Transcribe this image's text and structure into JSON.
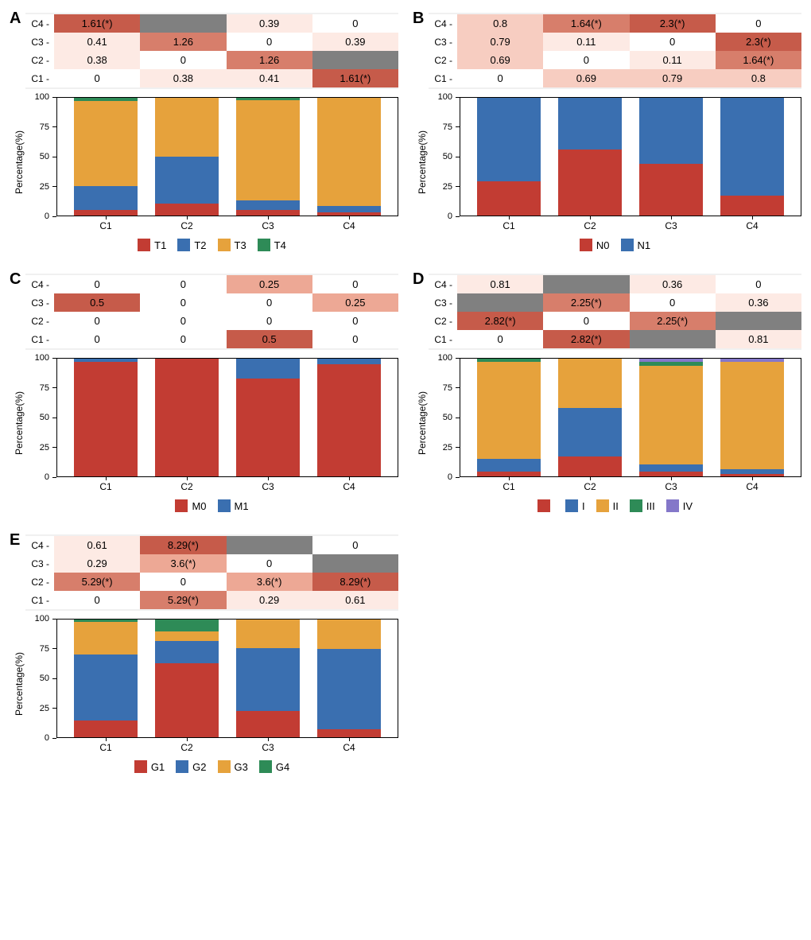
{
  "layout": {
    "cols": 2
  },
  "yaxis_label": "Percentage(%)",
  "yticks": [
    0,
    25,
    50,
    75,
    100
  ],
  "xcats": [
    "C1",
    "C2",
    "C3",
    "C4"
  ],
  "hm_rows": [
    "C4",
    "C3",
    "C2",
    "C1"
  ],
  "colors": {
    "red": "#c23c33",
    "blue": "#3a6fb0",
    "orange": "#e6a23c",
    "green": "#2e8b57",
    "purple": "#8477c9",
    "grey": "#808080",
    "hm0": "#ffffff",
    "hm1": "#fdeae4",
    "hm2": "#f7cdc1",
    "hm3": "#eda895",
    "hm4": "#d77e6b",
    "hm5": "#c65b4a",
    "panel_bg": "#f0f0f0"
  },
  "panels": [
    {
      "id": "A",
      "label": "A",
      "heat": [
        [
          {
            "v": "1.61(*)",
            "c": "hm5"
          },
          {
            "v": "",
            "c": "grey"
          },
          {
            "v": "0.39",
            "c": "hm1"
          },
          {
            "v": "0",
            "c": "hm0"
          }
        ],
        [
          {
            "v": "0.41",
            "c": "hm1"
          },
          {
            "v": "1.26",
            "c": "hm4"
          },
          {
            "v": "0",
            "c": "hm0"
          },
          {
            "v": "0.39",
            "c": "hm1"
          }
        ],
        [
          {
            "v": "0.38",
            "c": "hm1"
          },
          {
            "v": "0",
            "c": "hm0"
          },
          {
            "v": "1.26",
            "c": "hm4"
          },
          {
            "v": "",
            "c": "grey"
          }
        ],
        [
          {
            "v": "0",
            "c": "hm0"
          },
          {
            "v": "0.38",
            "c": "hm1"
          },
          {
            "v": "0.41",
            "c": "hm1"
          },
          {
            "v": "1.61(*)",
            "c": "hm5"
          }
        ]
      ],
      "series": [
        {
          "key": "T1",
          "color": "red"
        },
        {
          "key": "T2",
          "color": "blue"
        },
        {
          "key": "T3",
          "color": "orange"
        },
        {
          "key": "T4",
          "color": "green"
        }
      ],
      "stacks": [
        {
          "T4": 3,
          "T3": 72,
          "T2": 20,
          "T1": 5
        },
        {
          "T4": 0,
          "T3": 50,
          "T2": 40,
          "T1": 10
        },
        {
          "T4": 2,
          "T3": 85,
          "T2": 8,
          "T1": 5
        },
        {
          "T4": 0,
          "T3": 92,
          "T2": 5,
          "T1": 3
        }
      ]
    },
    {
      "id": "B",
      "label": "B",
      "heat": [
        [
          {
            "v": "0.8",
            "c": "hm2"
          },
          {
            "v": "1.64(*)",
            "c": "hm4"
          },
          {
            "v": "2.3(*)",
            "c": "hm5"
          },
          {
            "v": "0",
            "c": "hm0"
          }
        ],
        [
          {
            "v": "0.79",
            "c": "hm2"
          },
          {
            "v": "0.11",
            "c": "hm1"
          },
          {
            "v": "0",
            "c": "hm0"
          },
          {
            "v": "2.3(*)",
            "c": "hm5"
          }
        ],
        [
          {
            "v": "0.69",
            "c": "hm2"
          },
          {
            "v": "0",
            "c": "hm0"
          },
          {
            "v": "0.11",
            "c": "hm1"
          },
          {
            "v": "1.64(*)",
            "c": "hm4"
          }
        ],
        [
          {
            "v": "0",
            "c": "hm0"
          },
          {
            "v": "0.69",
            "c": "hm2"
          },
          {
            "v": "0.79",
            "c": "hm2"
          },
          {
            "v": "0.8",
            "c": "hm2"
          }
        ]
      ],
      "series": [
        {
          "key": "N0",
          "color": "red"
        },
        {
          "key": "N1",
          "color": "blue"
        }
      ],
      "stacks": [
        {
          "N1": 71,
          "N0": 29
        },
        {
          "N1": 44,
          "N0": 56
        },
        {
          "N1": 56,
          "N0": 44
        },
        {
          "N1": 83,
          "N0": 17
        }
      ]
    },
    {
      "id": "C",
      "label": "C",
      "heat": [
        [
          {
            "v": "0",
            "c": "hm0"
          },
          {
            "v": "0",
            "c": "hm0"
          },
          {
            "v": "0.25",
            "c": "hm3"
          },
          {
            "v": "0",
            "c": "hm0"
          }
        ],
        [
          {
            "v": "0.5",
            "c": "hm5"
          },
          {
            "v": "0",
            "c": "hm0"
          },
          {
            "v": "0",
            "c": "hm0"
          },
          {
            "v": "0.25",
            "c": "hm3"
          }
        ],
        [
          {
            "v": "0",
            "c": "hm0"
          },
          {
            "v": "0",
            "c": "hm0"
          },
          {
            "v": "0",
            "c": "hm0"
          },
          {
            "v": "0",
            "c": "hm0"
          }
        ],
        [
          {
            "v": "0",
            "c": "hm0"
          },
          {
            "v": "0",
            "c": "hm0"
          },
          {
            "v": "0.5",
            "c": "hm5"
          },
          {
            "v": "0",
            "c": "hm0"
          }
        ]
      ],
      "series": [
        {
          "key": "M0",
          "color": "red"
        },
        {
          "key": "M1",
          "color": "blue"
        }
      ],
      "stacks": [
        {
          "M1": 3,
          "M0": 97
        },
        {
          "M1": 0,
          "M0": 100
        },
        {
          "M1": 17,
          "M0": 83
        },
        {
          "M1": 5,
          "M0": 95
        }
      ]
    },
    {
      "id": "D",
      "label": "D",
      "heat": [
        [
          {
            "v": "0.81",
            "c": "hm1"
          },
          {
            "v": "",
            "c": "grey"
          },
          {
            "v": "0.36",
            "c": "hm1"
          },
          {
            "v": "0",
            "c": "hm0"
          }
        ],
        [
          {
            "v": "",
            "c": "grey"
          },
          {
            "v": "2.25(*)",
            "c": "hm4"
          },
          {
            "v": "0",
            "c": "hm0"
          },
          {
            "v": "0.36",
            "c": "hm1"
          }
        ],
        [
          {
            "v": "2.82(*)",
            "c": "hm5"
          },
          {
            "v": "0",
            "c": "hm0"
          },
          {
            "v": "2.25(*)",
            "c": "hm4"
          },
          {
            "v": "",
            "c": "grey"
          }
        ],
        [
          {
            "v": "0",
            "c": "hm0"
          },
          {
            "v": "2.82(*)",
            "c": "hm5"
          },
          {
            "v": "",
            "c": "grey"
          },
          {
            "v": "0.81",
            "c": "hm1"
          }
        ]
      ],
      "series": [
        {
          "key": "",
          "color": "red"
        },
        {
          "key": "I",
          "color": "blue"
        },
        {
          "key": "II",
          "color": "orange"
        },
        {
          "key": "III",
          "color": "green"
        },
        {
          "key": "IV",
          "color": "purple"
        }
      ],
      "stacks": [
        {
          "IV": 0,
          "III": 3,
          "II": 82,
          "I": 11,
          "": 4
        },
        {
          "IV": 0,
          "III": 0,
          "II": 42,
          "I": 41,
          "": 17
        },
        {
          "IV": 3,
          "III": 3,
          "II": 84,
          "I": 6,
          "": 4
        },
        {
          "IV": 3,
          "III": 0,
          "II": 91,
          "I": 4,
          "": 2
        }
      ]
    },
    {
      "id": "E",
      "label": "E",
      "heat": [
        [
          {
            "v": "0.61",
            "c": "hm1"
          },
          {
            "v": "8.29(*)",
            "c": "hm5"
          },
          {
            "v": "",
            "c": "grey"
          },
          {
            "v": "0",
            "c": "hm0"
          }
        ],
        [
          {
            "v": "0.29",
            "c": "hm1"
          },
          {
            "v": "3.6(*)",
            "c": "hm3"
          },
          {
            "v": "0",
            "c": "hm0"
          },
          {
            "v": "",
            "c": "grey"
          }
        ],
        [
          {
            "v": "5.29(*)",
            "c": "hm4"
          },
          {
            "v": "0",
            "c": "hm0"
          },
          {
            "v": "3.6(*)",
            "c": "hm3"
          },
          {
            "v": "8.29(*)",
            "c": "hm5"
          }
        ],
        [
          {
            "v": "0",
            "c": "hm0"
          },
          {
            "v": "5.29(*)",
            "c": "hm4"
          },
          {
            "v": "0.29",
            "c": "hm1"
          },
          {
            "v": "0.61",
            "c": "hm1"
          }
        ]
      ],
      "series": [
        {
          "key": "G1",
          "color": "red"
        },
        {
          "key": "G2",
          "color": "blue"
        },
        {
          "key": "G3",
          "color": "orange"
        },
        {
          "key": "G4",
          "color": "green"
        }
      ],
      "stacks": [
        {
          "G4": 2,
          "G3": 28,
          "G2": 56,
          "G1": 14
        },
        {
          "G4": 10,
          "G3": 8,
          "G2": 19,
          "G1": 63
        },
        {
          "G4": 0,
          "G3": 24,
          "G2": 54,
          "G1": 22
        },
        {
          "G4": 0,
          "G3": 25,
          "G2": 68,
          "G1": 7
        }
      ]
    }
  ]
}
